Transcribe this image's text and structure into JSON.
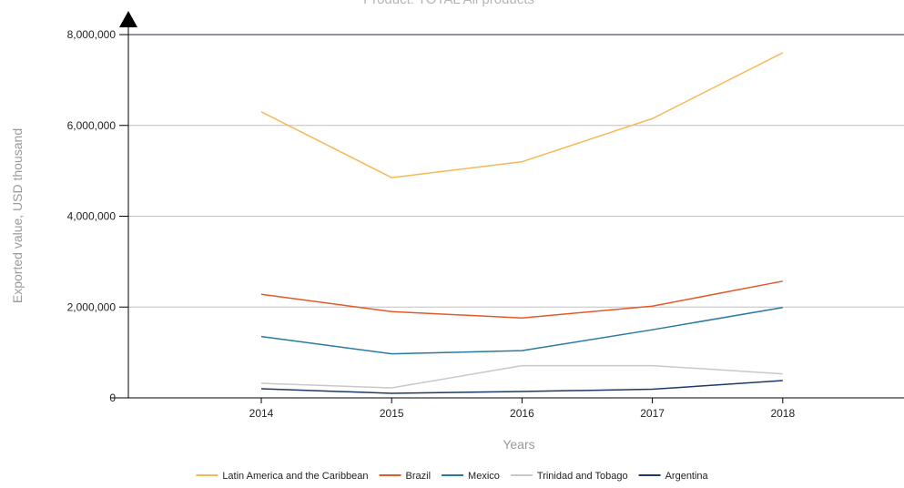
{
  "chart_data": {
    "type": "line",
    "title": "Product: TOTAL All products",
    "xlabel": "Years",
    "ylabel": "Exported value, USD thousand",
    "categories": [
      "2014",
      "2015",
      "2016",
      "2017",
      "2018"
    ],
    "ylim": [
      0,
      8000000
    ],
    "yticks": [
      0,
      2000000,
      4000000,
      6000000,
      8000000
    ],
    "ytick_labels": [
      "0",
      "2,000,000",
      "4,000,000",
      "6,000,000",
      "8,000,000"
    ],
    "grid": "horizontal",
    "legend_position": "bottom",
    "series": [
      {
        "name": "Latin America and the Caribbean",
        "color": "#f7b85a",
        "values": [
          6300000,
          4850000,
          5200000,
          6150000,
          7600000
        ]
      },
      {
        "name": "Brazil",
        "color": "#e05a2b",
        "values": [
          2280000,
          1900000,
          1760000,
          2020000,
          2570000
        ]
      },
      {
        "name": "Mexico",
        "color": "#2a7aa0",
        "values": [
          1350000,
          970000,
          1040000,
          1500000,
          1990000
        ]
      },
      {
        "name": "Trinidad and Tobago",
        "color": "#c8c8c8",
        "values": [
          320000,
          220000,
          710000,
          710000,
          530000
        ]
      },
      {
        "name": "Argentina",
        "color": "#1f3a66",
        "values": [
          200000,
          100000,
          140000,
          190000,
          380000
        ]
      }
    ]
  }
}
